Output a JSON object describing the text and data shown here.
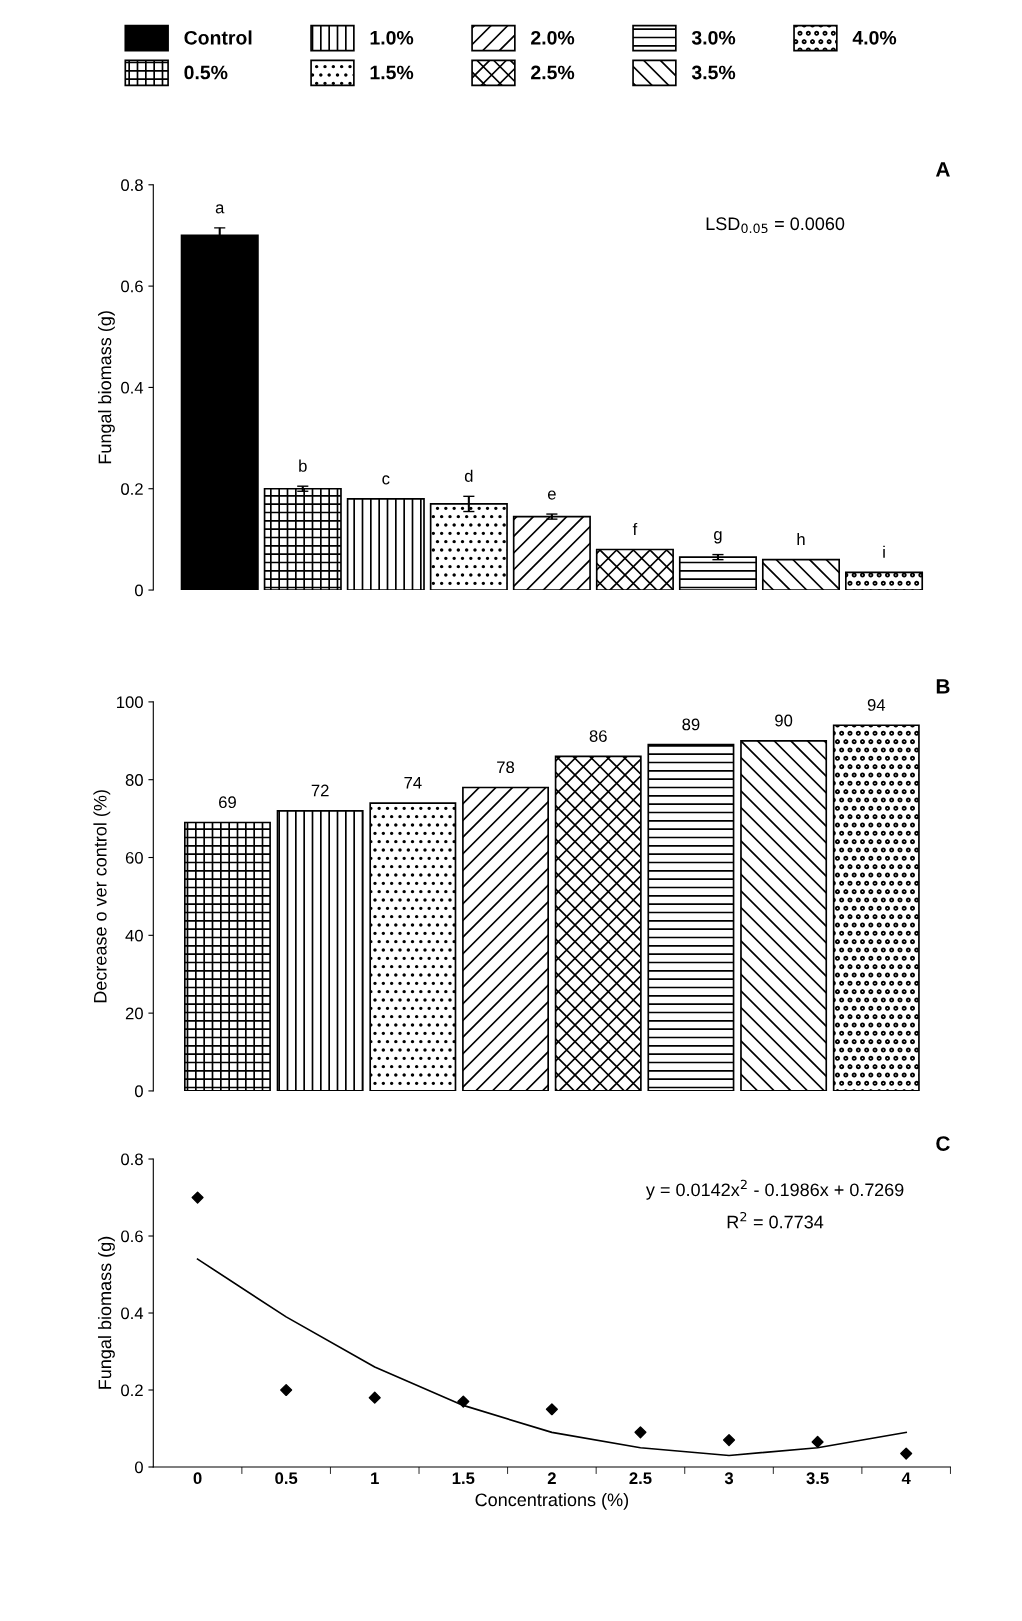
{
  "chart_data": [
    {
      "type": "bar",
      "title": "A",
      "ylabel": "Fungal biomass (g)",
      "categories": [
        null
      ],
      "ylim": [
        0,
        0.8
      ],
      "yticks": [
        0,
        0.2,
        0.4,
        0.6,
        0.8
      ],
      "legend": "top",
      "grid": false,
      "tick_labels": "y",
      "annotations": [
        "LSD$_{0.05}$ = 0.0060"
      ],
      "series": [
        {
          "name": "Control",
          "color": "#000000",
          "values": [
            0.7
          ],
          "errors": [
            0.015
          ],
          "value_labels": [
            "a"
          ]
        },
        {
          "name": "0.5%",
          "color": "#000000",
          "values": [
            0.2
          ],
          "errors": [
            0.005
          ],
          "value_labels": [
            "b"
          ]
        },
        {
          "name": "1.0%",
          "color": "#000000",
          "values": [
            0.18
          ],
          "errors": [
            null
          ],
          "value_labels": [
            "c"
          ]
        },
        {
          "name": "1.5%",
          "color": "#000000",
          "values": [
            0.17
          ],
          "errors": [
            0.015
          ],
          "value_labels": [
            "d"
          ]
        },
        {
          "name": "2.0%",
          "color": "#000000",
          "values": [
            0.145
          ],
          "errors": [
            0.005
          ],
          "value_labels": [
            "e"
          ]
        },
        {
          "name": "2.5%",
          "color": "#000000",
          "values": [
            0.08
          ],
          "errors": [
            null
          ],
          "value_labels": [
            "f"
          ]
        },
        {
          "name": "3.0%",
          "color": "#000000",
          "values": [
            0.065
          ],
          "errors": [
            0.005
          ],
          "value_labels": [
            "g"
          ]
        },
        {
          "name": "3.5%",
          "color": "#000000",
          "values": [
            0.06
          ],
          "errors": [
            null
          ],
          "value_labels": [
            "h"
          ]
        },
        {
          "name": "4.0%",
          "color": "#000000",
          "values": [
            0.035
          ],
          "errors": [
            null
          ],
          "value_labels": [
            "i"
          ]
        }
      ]
    },
    {
      "type": "bar",
      "title": "B",
      "ylabel": "Decrease o ver control (%)",
      "categories": [
        null
      ],
      "ylim": [
        0,
        100
      ],
      "yticks": [
        0,
        20,
        40,
        60,
        80,
        100
      ],
      "legend": false,
      "grid": false,
      "tick_labels": "y",
      "data_labels": true,
      "series": [
        {
          "color": "#000000",
          "values": [
            69
          ]
        },
        {
          "color": "#000000",
          "values": [
            72
          ]
        },
        {
          "color": "#000000",
          "values": [
            74
          ]
        },
        {
          "color": "#000000",
          "values": [
            78
          ]
        },
        {
          "color": "#000000",
          "values": [
            86
          ]
        },
        {
          "color": "#000000",
          "values": [
            89
          ]
        },
        {
          "color": "#000000",
          "values": [
            90
          ]
        },
        {
          "color": "#000000",
          "values": [
            94
          ]
        }
      ]
    },
    {
      "type": "scatter",
      "title": "C",
      "ylabel": "Fungal biomass (g)",
      "xlabel": "Concentrations (%)",
      "categories": [
        "0",
        "0.5",
        "1",
        "1.5",
        "2",
        "2.5",
        "3",
        "3.5",
        "4"
      ],
      "ylim": [
        0,
        0.8
      ],
      "yticks": [
        0,
        0.2,
        0.4,
        0.6,
        0.8
      ],
      "legend": false,
      "grid": false,
      "annotations": [
        "y = 0.0142x$^{2}$ - 0.1986x + 0.7269",
        "R$^{2}$ = 0.7734"
      ],
      "series": [
        {
          "type": "scatter",
          "color": "#000000",
          "marker": "diamond",
          "values": [
            0.7,
            0.2,
            0.18,
            0.17,
            0.15,
            0.09,
            0.07,
            0.065,
            0.035
          ]
        },
        {
          "type": "line",
          "color": "#000000",
          "marker": "none",
          "line_style": "solid",
          "values": [
            0.54,
            0.39,
            0.26,
            0.16,
            0.09,
            0.05,
            0.03,
            0.05,
            0.09
          ]
        }
      ]
    }
  ]
}
